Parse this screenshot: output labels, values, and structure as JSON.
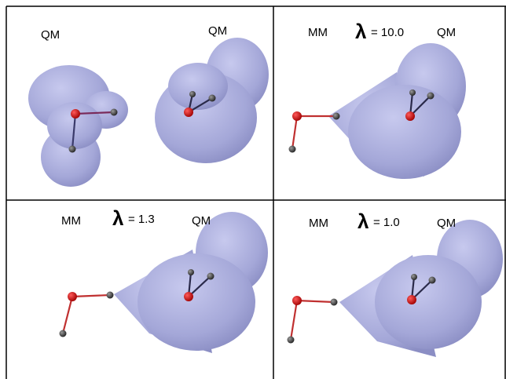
{
  "panels": [
    {
      "left_label": "QM",
      "right_label": "QM"
    },
    {
      "left_label": "MM",
      "lambda_symbol": "λ",
      "lambda_value": "= 10.0",
      "right_label": "QM"
    },
    {
      "left_label": "MM",
      "lambda_symbol": "λ",
      "lambda_value": "= 1.3",
      "right_label": "QM"
    },
    {
      "left_label": "MM",
      "lambda_symbol": "λ",
      "lambda_value": "= 1.0",
      "right_label": "QM"
    }
  ]
}
